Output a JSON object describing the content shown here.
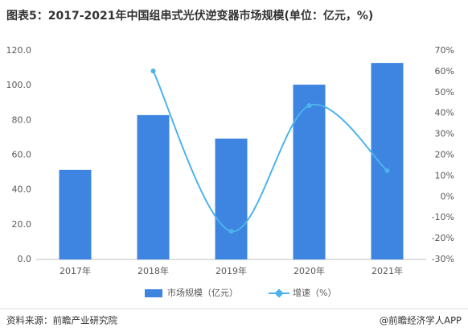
{
  "title": "图表5：2017-2021年中国组串式光伏逆变器市场规模(单位：亿元，%)",
  "chart_data": {
    "type": "bar-line",
    "categories": [
      "2017年",
      "2018年",
      "2019年",
      "2020年",
      "2021年"
    ],
    "series": [
      {
        "name": "市场规模（亿元）",
        "type": "bar",
        "color": "#3d85e0",
        "values": [
          51.5,
          83,
          69.5,
          100.5,
          113
        ]
      },
      {
        "name": "增速（%）",
        "type": "line",
        "axis": "y2",
        "color": "#4db3ec",
        "values": [
          null,
          60.3,
          -16.5,
          43.7,
          12.5
        ]
      }
    ],
    "ylim": [
      0,
      120
    ],
    "yticks": [
      {
        "value": 0,
        "label": "0.0"
      },
      {
        "value": 20,
        "label": "20.0"
      },
      {
        "value": 40,
        "label": "40.0"
      },
      {
        "value": 60,
        "label": "60.0"
      },
      {
        "value": 80,
        "label": "80.0"
      },
      {
        "value": 100,
        "label": "100.0"
      },
      {
        "value": 120,
        "label": "120.0"
      }
    ],
    "y2lim": [
      -30,
      70
    ],
    "y2ticks": [
      {
        "value": -30,
        "label": "-30%"
      },
      {
        "value": -20,
        "label": "-20%"
      },
      {
        "value": -10,
        "label": "-10%"
      },
      {
        "value": 0,
        "label": "0%"
      },
      {
        "value": 10,
        "label": "10%"
      },
      {
        "value": 20,
        "label": "20%"
      },
      {
        "value": 30,
        "label": "30%"
      },
      {
        "value": 40,
        "label": "40%"
      },
      {
        "value": 50,
        "label": "50%"
      },
      {
        "value": 60,
        "label": "60%"
      },
      {
        "value": 70,
        "label": "70%"
      }
    ],
    "grid": false,
    "legend": "bottom"
  },
  "source": "资料来源：前瞻产业研究院",
  "brand": "@前瞻经济学人APP"
}
